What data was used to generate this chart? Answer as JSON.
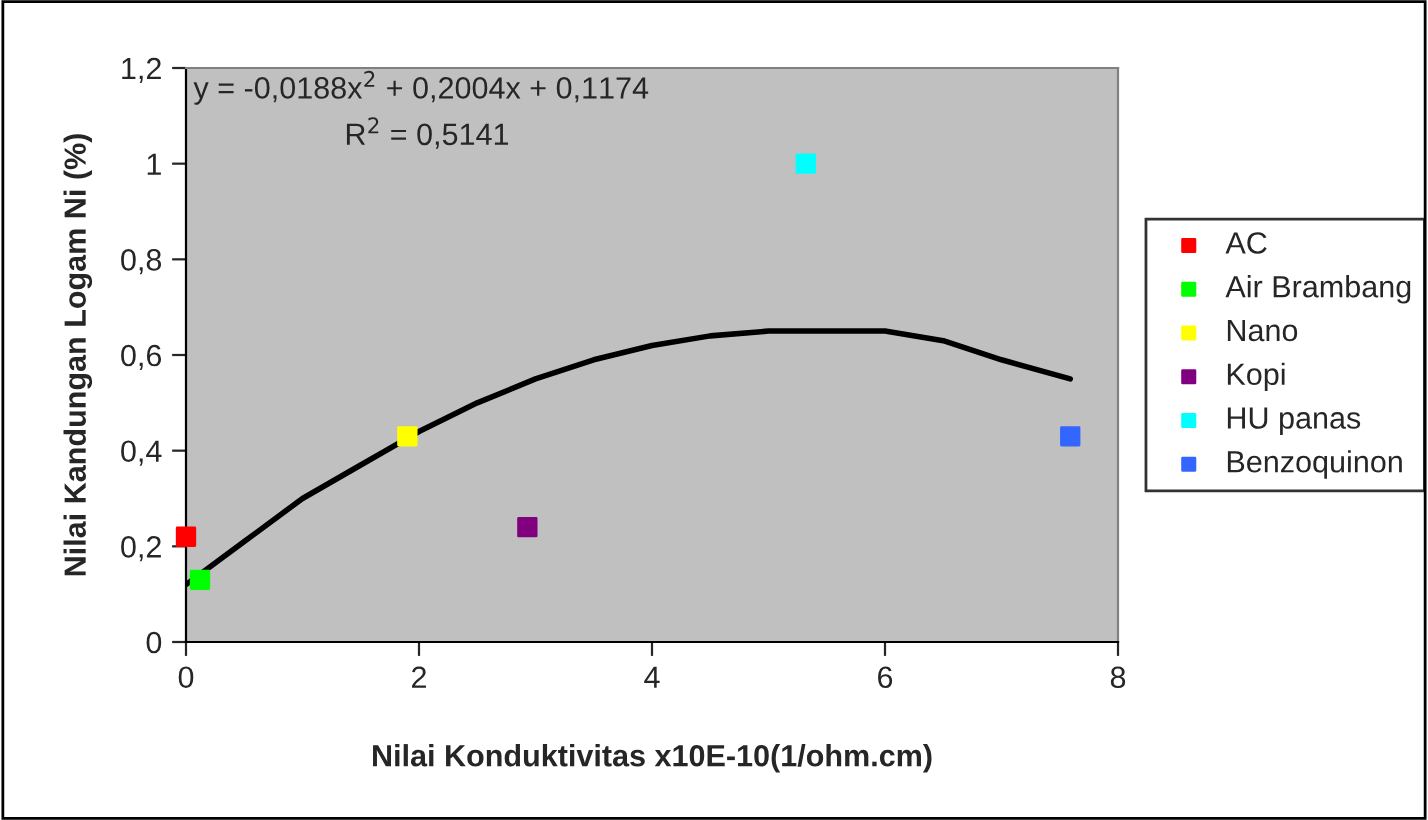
{
  "chart_data": {
    "type": "scatter",
    "xlabel": "Nilai Konduktivitas x10E-10(1/ohm.cm)",
    "ylabel": "Nilai Kandungan Logam Ni (%)",
    "annotations": [
      "y = -0,0188x$^{2}$ + 0,2004x + 0,1174",
      "R$^{2}$ = 0,5141"
    ],
    "series": [
      {
        "name": "AC",
        "color": "#ff0000",
        "x": [
          0
        ],
        "values": [
          0.22
        ]
      },
      {
        "name": "Air Brambang",
        "color": "#00ff00",
        "x": [
          0.12
        ],
        "values": [
          0.13
        ]
      },
      {
        "name": "Nano",
        "color": "#ffff00",
        "x": [
          1.9
        ],
        "values": [
          0.43
        ]
      },
      {
        "name": "Kopi",
        "color": "#800080",
        "x": [
          2.93
        ],
        "values": [
          0.24
        ]
      },
      {
        "name": "HU panas",
        "color": "#00ffff",
        "x": [
          5.32
        ],
        "values": [
          1.0
        ]
      },
      {
        "name": "Benzoquinon",
        "color": "#3366ff",
        "x": [
          7.59
        ],
        "values": [
          0.43
        ]
      },
      {
        "type": "line",
        "color": "#000000",
        "x": [
          0,
          0.5,
          1,
          1.5,
          2,
          2.5,
          3,
          3.5,
          4,
          4.5,
          5,
          5.5,
          6,
          6.5,
          7,
          7.59
        ],
        "values": [
          0.12,
          0.21,
          0.3,
          0.37,
          0.44,
          0.5,
          0.55,
          0.59,
          0.62,
          0.64,
          0.65,
          0.65,
          0.65,
          0.63,
          0.59,
          0.55
        ],
        "marker": "none"
      }
    ],
    "marker": "square",
    "xlim": [
      0,
      8
    ],
    "xticks": [
      0,
      2,
      4,
      6,
      8
    ],
    "ylim": [
      0,
      1.2
    ],
    "yticks": [
      0,
      {
        "value": 0.2,
        "label": "0,2"
      },
      {
        "value": 0.4,
        "label": "0,4"
      },
      {
        "value": 0.6,
        "label": "0,6"
      },
      {
        "value": 0.8,
        "label": "0,8"
      },
      1,
      {
        "value": 1.2,
        "label": "1,2"
      }
    ],
    "grid": false,
    "legend": "right"
  }
}
